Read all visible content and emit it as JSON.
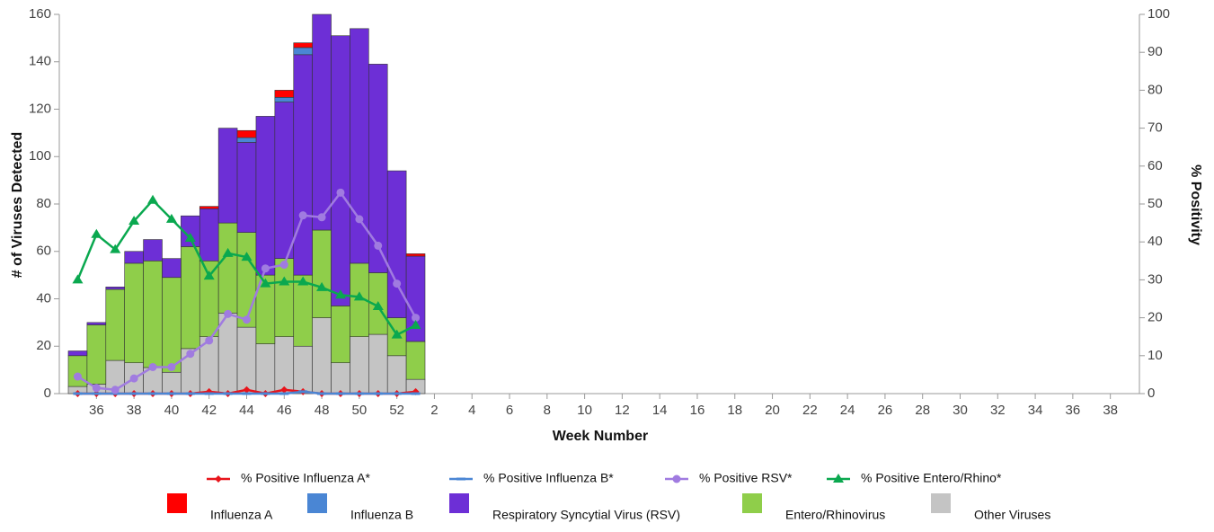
{
  "chart_data": {
    "type": "bar",
    "x_label": "Week Number",
    "y_label": "# of Viruses Detected",
    "y2_label": "% Positivity",
    "categories": [
      null,
      36,
      null,
      38,
      null,
      40,
      null,
      42,
      null,
      44,
      null,
      46,
      null,
      48,
      null,
      50,
      null,
      52,
      null,
      2,
      null,
      4,
      null,
      6,
      null,
      8,
      null,
      10,
      null,
      12,
      null,
      14,
      null,
      16,
      null,
      18,
      null,
      20,
      null,
      22,
      null,
      24,
      null,
      26,
      null,
      28,
      null,
      30,
      null,
      32,
      null,
      34,
      null,
      36,
      null,
      38,
      null
    ],
    "ylim": [
      0,
      160
    ],
    "yticks": [
      0,
      20,
      40,
      60,
      80,
      100,
      120,
      140,
      160
    ],
    "y2lim": [
      0,
      100
    ],
    "y2ticks": [
      0,
      10,
      20,
      30,
      40,
      50,
      60,
      70,
      80,
      90,
      100
    ],
    "stacked": true,
    "series": [
      {
        "name": "% Positive Influenza A*",
        "type": "line",
        "axis": "y2",
        "marker": "diamond",
        "color": "#e8141b",
        "values": [
          0,
          0,
          0,
          0,
          0,
          0,
          0,
          0.5,
          0,
          1,
          0,
          1,
          0.5,
          0,
          0,
          0,
          0,
          0,
          0.5,
          null,
          null,
          null,
          null,
          null,
          null,
          null,
          null,
          null,
          null,
          null,
          null,
          null,
          null,
          null,
          null,
          null,
          null,
          null,
          null,
          null,
          null,
          null,
          null,
          null,
          null,
          null,
          null,
          null,
          null,
          null,
          null,
          null,
          null,
          null,
          null,
          null,
          null
        ]
      },
      {
        "name": "% Positive Influenza B*",
        "type": "line",
        "axis": "y2",
        "marker": "dash",
        "color": "#4a86d4",
        "values": [
          0,
          0,
          0,
          0,
          0,
          0,
          0,
          0,
          0,
          0,
          0,
          0,
          0.5,
          0,
          0,
          0,
          0,
          0,
          0,
          null,
          null,
          null,
          null,
          null,
          null,
          null,
          null,
          null,
          null,
          null,
          null,
          null,
          null,
          null,
          null,
          null,
          null,
          null,
          null,
          null,
          null,
          null,
          null,
          null,
          null,
          null,
          null,
          null,
          null,
          null,
          null,
          null,
          null,
          null,
          null,
          null,
          null
        ]
      },
      {
        "name": "% Positive RSV*",
        "type": "line",
        "axis": "y2",
        "marker": "circle",
        "color": "#a07be0",
        "values": [
          4.5,
          1.5,
          1,
          4,
          7,
          7,
          10.5,
          14,
          21,
          19.5,
          33,
          34,
          47,
          46.5,
          53,
          46,
          39,
          29,
          20,
          null,
          null,
          null,
          null,
          null,
          null,
          null,
          null,
          null,
          null,
          null,
          null,
          null,
          null,
          null,
          null,
          null,
          null,
          null,
          null,
          null,
          null,
          null,
          null,
          null,
          null,
          null,
          null,
          null,
          null,
          null,
          null,
          null,
          null,
          null,
          null,
          null,
          null
        ]
      },
      {
        "name": "% Positive Entero/Rhino*",
        "type": "line",
        "axis": "y2",
        "marker": "triangle",
        "color": "#0aa84f",
        "values": [
          30,
          42,
          38,
          45.5,
          51,
          46,
          41,
          31,
          37,
          36,
          29,
          29.5,
          29.5,
          28,
          26,
          25.5,
          23,
          15.5,
          18,
          null,
          null,
          null,
          null,
          null,
          null,
          null,
          null,
          null,
          null,
          null,
          null,
          null,
          null,
          null,
          null,
          null,
          null,
          null,
          null,
          null,
          null,
          null,
          null,
          null,
          null,
          null,
          null,
          null,
          null,
          null,
          null,
          null,
          null,
          null,
          null,
          null,
          null
        ]
      },
      {
        "name": "Influenza A",
        "type": "bar",
        "color": "#ff0000",
        "stack": 4,
        "values": [
          0,
          0,
          0,
          0,
          0,
          0,
          0,
          1,
          0,
          3,
          0,
          3,
          2,
          0,
          0,
          0,
          0,
          0,
          1,
          null,
          null,
          null,
          null,
          null,
          null,
          null,
          null,
          null,
          null,
          null,
          null,
          null,
          null,
          null,
          null,
          null,
          null,
          null,
          null,
          null,
          null,
          null,
          null,
          null,
          null,
          null,
          null,
          null,
          null,
          null,
          null,
          null,
          null,
          null,
          null,
          null,
          null
        ]
      },
      {
        "name": "Influenza B",
        "type": "bar",
        "color": "#4a86d4",
        "stack": 3,
        "values": [
          0,
          0,
          0,
          0,
          0,
          0,
          0,
          0,
          0,
          2,
          0,
          2,
          3,
          0,
          0,
          0,
          0,
          0,
          0,
          null,
          null,
          null,
          null,
          null,
          null,
          null,
          null,
          null,
          null,
          null,
          null,
          null,
          null,
          null,
          null,
          null,
          null,
          null,
          null,
          null,
          null,
          null,
          null,
          null,
          null,
          null,
          null,
          null,
          null,
          null,
          null,
          null,
          null,
          null,
          null,
          null,
          null
        ]
      },
      {
        "name": "Respiratory Syncytial Virus (RSV)",
        "type": "bar",
        "color": "#6d2fd6",
        "stack": 2,
        "values": [
          2,
          1,
          1,
          5,
          9,
          8,
          13,
          22,
          40,
          38,
          67,
          66,
          93,
          91,
          114,
          99,
          88,
          62,
          36,
          null,
          null,
          null,
          null,
          null,
          null,
          null,
          null,
          null,
          null,
          null,
          null,
          null,
          null,
          null,
          null,
          null,
          null,
          null,
          null,
          null,
          null,
          null,
          null,
          null,
          null,
          null,
          null,
          null,
          null,
          null,
          null,
          null,
          null,
          null,
          null,
          null,
          null
        ]
      },
      {
        "name": "Entero/Rhinovirus",
        "type": "bar",
        "color": "#8fce4a",
        "stack": 1,
        "values": [
          13,
          25,
          30,
          42,
          45,
          40,
          43,
          32,
          38,
          40,
          29,
          33,
          30,
          37,
          24,
          31,
          26,
          16,
          16,
          null,
          null,
          null,
          null,
          null,
          null,
          null,
          null,
          null,
          null,
          null,
          null,
          null,
          null,
          null,
          null,
          null,
          null,
          null,
          null,
          null,
          null,
          null,
          null,
          null,
          null,
          null,
          null,
          null,
          null,
          null,
          null,
          null,
          null,
          null,
          null,
          null,
          null
        ]
      },
      {
        "name": "Other Viruses",
        "type": "bar",
        "color": "#c4c4c4",
        "stack": 0,
        "values": [
          3,
          4,
          14,
          13,
          11,
          9,
          19,
          24,
          34,
          28,
          21,
          24,
          20,
          32,
          13,
          24,
          25,
          16,
          6,
          null,
          null,
          null,
          null,
          null,
          null,
          null,
          null,
          null,
          null,
          null,
          null,
          null,
          null,
          null,
          null,
          null,
          null,
          null,
          null,
          null,
          null,
          null,
          null,
          null,
          null,
          null,
          null,
          null,
          null,
          null,
          null,
          null,
          null,
          null,
          null,
          null,
          null
        ]
      }
    ]
  }
}
